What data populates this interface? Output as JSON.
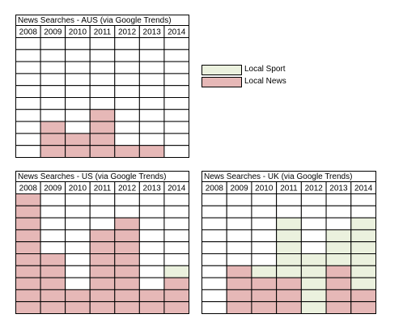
{
  "colors": {
    "local_sport": "#ebf1de",
    "local_news": "#e6b8b7",
    "grid": "#000000",
    "background": "#ffffff"
  },
  "legend": [
    {
      "label": "Local Sport",
      "color_key": "local_sport"
    },
    {
      "label": "Local News",
      "color_key": "local_news"
    }
  ],
  "chart_data": [
    {
      "type": "heatmap",
      "title": "News Searches - AUS (via Google Trends)",
      "categories": [
        "2008",
        "2009",
        "2010",
        "2011",
        "2012",
        "2013",
        "2014"
      ],
      "rows": 10,
      "series": [
        {
          "name": "Local News",
          "values": [
            0,
            3,
            2,
            4,
            1,
            1,
            0
          ]
        },
        {
          "name": "Local Sport",
          "values": [
            0,
            0,
            0,
            0,
            0,
            0,
            0
          ]
        }
      ]
    },
    {
      "type": "heatmap",
      "title": "News Searches - US (via Google Trends)",
      "categories": [
        "2008",
        "2009",
        "2010",
        "2011",
        "2012",
        "2013",
        "2014"
      ],
      "rows": 10,
      "series": [
        {
          "name": "Local News",
          "values": [
            10,
            5,
            2,
            7,
            8,
            2,
            3
          ]
        },
        {
          "name": "Local Sport",
          "values": [
            0,
            0,
            0,
            0,
            0,
            0,
            4
          ]
        }
      ]
    },
    {
      "type": "heatmap",
      "title": "News Searches - UK (via Google Trends)",
      "categories": [
        "2008",
        "2009",
        "2010",
        "2011",
        "2012",
        "2013",
        "2014"
      ],
      "rows": 10,
      "series": [
        {
          "name": "Local News",
          "values": [
            0,
            4,
            3,
            3,
            0,
            4,
            2
          ]
        },
        {
          "name": "Local Sport",
          "values": [
            0,
            0,
            4,
            8,
            5,
            7,
            8
          ]
        }
      ]
    }
  ]
}
